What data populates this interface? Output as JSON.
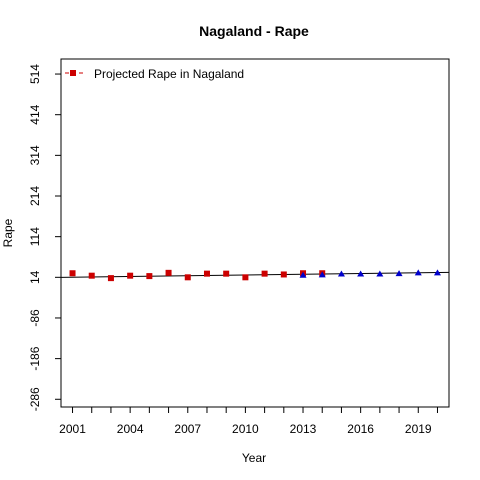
{
  "chart_data": {
    "type": "scatter",
    "title": "Nagaland  -  Rape",
    "xlabel": "Year",
    "ylabel": "Rape",
    "xlim": [
      2000.4,
      2020.6
    ],
    "ylim": [
      -305,
      551
    ],
    "xticks": [
      2001,
      2004,
      2007,
      2010,
      2013,
      2016,
      2019
    ],
    "yticks": [
      -286,
      -186,
      -86,
      14,
      114,
      214,
      314,
      414,
      514
    ],
    "grid": false,
    "legend": {
      "position": "top-left",
      "entries": [
        "Projected Rape in Nagaland"
      ]
    },
    "series": [
      {
        "name": "Projected Rape in Nagaland",
        "color": "#cc0000",
        "marker": "square",
        "x": [
          2001,
          2002,
          2003,
          2004,
          2005,
          2006,
          2007,
          2008,
          2009,
          2010,
          2011,
          2012,
          2013,
          2014
        ],
        "y": [
          24,
          18,
          12,
          18,
          17,
          25,
          14,
          23,
          23,
          14,
          23,
          21,
          24,
          24
        ]
      },
      {
        "color": "#0000cc",
        "marker": "triangle",
        "x": [
          2013,
          2014,
          2015,
          2016,
          2017,
          2018,
          2019,
          2020
        ],
        "y": [
          19,
          20,
          22,
          22,
          22,
          23,
          25,
          25
        ]
      }
    ],
    "trend_line": {
      "color": "#000000",
      "x": [
        2000.4,
        2020.6
      ],
      "y": [
        14,
        26
      ]
    }
  }
}
